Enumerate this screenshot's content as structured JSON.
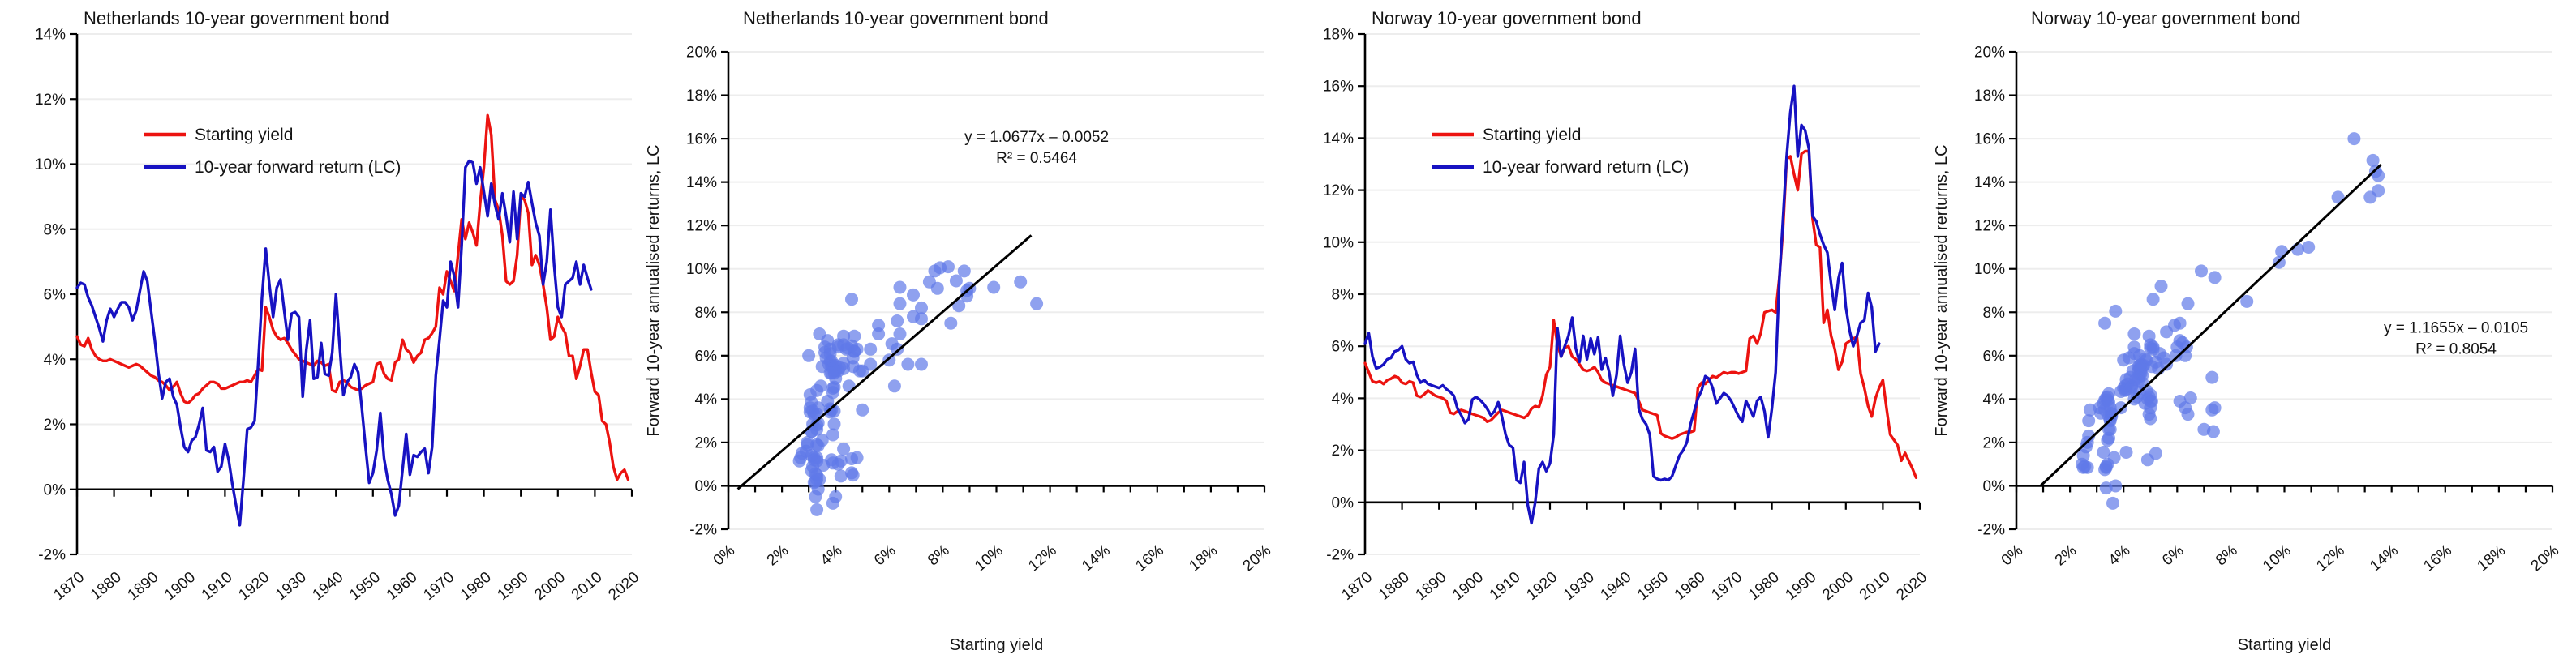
{
  "page": {
    "background": "#ffffff",
    "palette": {
      "red": "#ec1310",
      "blue": "#1712c2",
      "dot": "#6079e8",
      "dot_opacity": 0.7,
      "trend": "#000000",
      "grid": "#ededed",
      "axis": "#000000",
      "text": "#141414"
    }
  },
  "chart_data": [
    {
      "name": "netherlands-timeseries",
      "type": "line",
      "title": "Netherlands 10-year government bond",
      "x_start": 1870,
      "x_end": 2020,
      "x_tick_step": 10,
      "x_ticklabels": [
        "1870",
        "1880",
        "1890",
        "1900",
        "1910",
        "1920",
        "1930",
        "1940",
        "1950",
        "1960",
        "1970",
        "1980",
        "1990",
        "2000",
        "2010",
        "2020"
      ],
      "ylim": [
        -2,
        14
      ],
      "y_tick_step": 2,
      "y_ticklabels": [
        "-2%",
        "0%",
        "2%",
        "4%",
        "6%",
        "8%",
        "10%",
        "12%",
        "14%"
      ],
      "grid": true,
      "legend_position": "upper-left",
      "series": [
        {
          "name": "Starting yield",
          "color_key": "red",
          "start_year": 1870,
          "values": [
            4.7,
            4.45,
            4.4,
            4.65,
            4.3,
            4.1,
            4.0,
            3.95,
            3.95,
            4.0,
            3.95,
            3.9,
            3.85,
            3.8,
            3.75,
            3.8,
            3.85,
            3.8,
            3.7,
            3.6,
            3.5,
            3.45,
            3.35,
            3.3,
            3.2,
            3.05,
            3.15,
            3.3,
            2.95,
            2.7,
            2.65,
            2.75,
            2.9,
            2.95,
            3.1,
            3.2,
            3.3,
            3.3,
            3.25,
            3.1,
            3.1,
            3.15,
            3.2,
            3.25,
            3.3,
            3.3,
            3.35,
            3.3,
            3.5,
            3.7,
            3.65,
            5.6,
            5.3,
            4.9,
            4.7,
            4.6,
            4.65,
            4.5,
            4.3,
            4.15,
            4.0,
            3.95,
            3.9,
            3.85,
            3.8,
            3.95,
            3.9,
            3.8,
            3.85,
            3.05,
            3.0,
            3.3,
            3.35,
            3.3,
            3.15,
            3.1,
            3.05,
            3.1,
            3.2,
            3.25,
            3.3,
            3.85,
            3.9,
            3.55,
            3.4,
            3.35,
            3.9,
            4.0,
            4.6,
            4.3,
            4.2,
            3.9,
            4.1,
            4.2,
            4.6,
            4.65,
            4.8,
            5.0,
            6.2,
            6.0,
            6.7,
            6.4,
            6.1,
            7.2,
            8.3,
            7.7,
            8.2,
            7.9,
            7.5,
            8.8,
            9.9,
            11.5,
            10.9,
            8.9,
            8.6,
            7.8,
            6.4,
            6.3,
            6.4,
            7.2,
            9.0,
            8.9,
            8.5,
            6.9,
            7.2,
            6.9,
            6.3,
            5.6,
            4.6,
            4.7,
            5.3,
            5.0,
            4.8,
            4.1,
            4.1,
            3.4,
            3.8,
            4.3,
            4.3,
            3.6,
            3.0,
            2.9,
            2.1,
            2.0,
            1.45,
            0.7,
            0.3,
            0.5,
            0.6,
            0.3
          ]
        },
        {
          "name": "10-year forward return (LC)",
          "color_key": "blue",
          "start_year": 1870,
          "values": [
            6.2,
            6.35,
            6.3,
            5.9,
            5.65,
            5.3,
            4.95,
            4.55,
            5.2,
            5.55,
            5.3,
            5.55,
            5.75,
            5.75,
            5.6,
            5.2,
            5.5,
            6.1,
            6.7,
            6.4,
            5.5,
            4.6,
            3.6,
            2.8,
            3.3,
            3.4,
            2.85,
            2.6,
            1.9,
            1.3,
            1.15,
            1.5,
            1.6,
            2.0,
            2.5,
            1.2,
            1.15,
            1.3,
            0.55,
            0.7,
            1.4,
            0.9,
            0.15,
            -0.5,
            -1.1,
            0.3,
            1.85,
            1.9,
            2.1,
            3.9,
            5.9,
            7.4,
            6.3,
            5.3,
            6.2,
            6.45,
            5.5,
            4.6,
            5.4,
            5.45,
            5.3,
            2.85,
            4.3,
            5.2,
            3.4,
            3.45,
            4.5,
            3.55,
            3.5,
            4.2,
            6.0,
            4.4,
            2.9,
            3.3,
            3.45,
            3.85,
            3.6,
            2.5,
            1.3,
            0.2,
            0.5,
            1.2,
            2.35,
            0.95,
            0.3,
            -0.15,
            -0.8,
            -0.5,
            0.6,
            1.7,
            0.45,
            1.05,
            1.0,
            1.15,
            1.25,
            0.5,
            1.3,
            3.5,
            4.6,
            5.8,
            5.6,
            7.0,
            6.55,
            5.6,
            7.5,
            9.9,
            10.1,
            10.05,
            9.4,
            9.9,
            9.15,
            8.4,
            9.4,
            8.75,
            8.3,
            9.1,
            8.4,
            7.6,
            9.15,
            7.7,
            9.1,
            9.0,
            9.45,
            8.8,
            8.2,
            7.8,
            6.3,
            7.0,
            8.6,
            6.9,
            5.6,
            5.3,
            6.3,
            6.4,
            6.5,
            7.0,
            6.3,
            6.9,
            6.5,
            6.15
          ]
        }
      ]
    },
    {
      "name": "netherlands-scatter",
      "type": "scatter",
      "title": "Netherlands 10-year government bond",
      "xlabel": "Starting yield",
      "ylabel": "Forward 10-year annualised rerturns, LC",
      "xlim": [
        0,
        20
      ],
      "ylim": [
        -2,
        20
      ],
      "x_tick_step": 2,
      "x_minor_step": 1,
      "y_tick_step": 2,
      "x_ticklabels": [
        "0%",
        "2%",
        "4%",
        "6%",
        "8%",
        "10%",
        "12%",
        "14%",
        "16%",
        "18%",
        "20%"
      ],
      "y_ticklabels": [
        "-2%",
        "0%",
        "2%",
        "4%",
        "6%",
        "8%",
        "10%",
        "12%",
        "14%",
        "16%",
        "18%",
        "20%"
      ],
      "points_from": "netherlands-timeseries",
      "trend": {
        "slope": 1.0677,
        "intercept_pct": -0.52,
        "x_min": 0.35,
        "x_max": 11.3
      },
      "equation_line1": "y = 1.0677x – 0.0052",
      "equation_line2": "R² = 0.5464",
      "equation_pos": {
        "x": 11.5,
        "y": 15.85
      }
    },
    {
      "name": "norway-timeseries",
      "type": "line",
      "title": "Norway 10-year government bond",
      "x_start": 1870,
      "x_end": 2020,
      "x_tick_step": 10,
      "x_ticklabels": [
        "1870",
        "1880",
        "1890",
        "1900",
        "1910",
        "1920",
        "1930",
        "1940",
        "1950",
        "1960",
        "1970",
        "1980",
        "1990",
        "2000",
        "2010",
        "2020"
      ],
      "ylim": [
        -2,
        18
      ],
      "y_tick_step": 2,
      "y_ticklabels": [
        "-2%",
        "0%",
        "2%",
        "4%",
        "6%",
        "8%",
        "10%",
        "12%",
        "14%",
        "16%",
        "18%"
      ],
      "grid": true,
      "legend_position": "upper-left",
      "series": [
        {
          "name": "Starting yield",
          "color_key": "red",
          "start_year": 1870,
          "values": [
            5.35,
            5.0,
            4.65,
            4.6,
            4.65,
            4.55,
            4.7,
            4.75,
            4.85,
            4.8,
            4.6,
            4.55,
            4.65,
            4.6,
            4.1,
            4.05,
            4.15,
            4.3,
            4.2,
            4.1,
            4.05,
            4.0,
            3.9,
            3.45,
            3.4,
            3.5,
            3.55,
            3.5,
            3.45,
            3.4,
            3.35,
            3.3,
            3.25,
            3.1,
            3.15,
            3.3,
            3.45,
            3.55,
            3.5,
            3.45,
            3.4,
            3.35,
            3.3,
            3.25,
            3.35,
            3.6,
            3.7,
            3.65,
            4.1,
            4.9,
            5.2,
            7.0,
            6.1,
            5.6,
            5.95,
            6.0,
            5.6,
            5.5,
            5.3,
            5.1,
            5.05,
            5.1,
            5.2,
            5.0,
            4.7,
            4.6,
            4.55,
            4.5,
            4.45,
            4.4,
            4.35,
            4.3,
            4.25,
            4.2,
            3.9,
            3.55,
            3.5,
            3.45,
            3.4,
            3.35,
            2.65,
            2.55,
            2.5,
            2.45,
            2.5,
            2.6,
            2.65,
            2.7,
            2.7,
            2.75,
            4.4,
            4.6,
            4.55,
            4.7,
            4.85,
            4.8,
            4.9,
            5.0,
            4.95,
            5.0,
            5.0,
            4.95,
            5.0,
            5.05,
            6.3,
            6.4,
            6.1,
            6.5,
            7.3,
            7.35,
            7.4,
            7.3,
            8.6,
            10.5,
            13.2,
            13.3,
            12.6,
            12.0,
            13.4,
            13.5,
            13.5,
            10.9,
            9.9,
            9.8,
            6.9,
            7.4,
            6.4,
            5.9,
            5.1,
            5.4,
            6.1,
            6.2,
            6.3,
            6.35,
            4.95,
            4.4,
            3.7,
            3.3,
            4.0,
            4.4,
            4.7,
            3.6,
            2.6,
            2.4,
            2.2,
            1.6,
            1.9,
            1.6,
            1.3,
            0.95
          ]
        },
        {
          "name": "10-year forward return (LC)",
          "color_key": "blue",
          "start_year": 1870,
          "values": [
            6.1,
            6.5,
            5.6,
            5.15,
            5.2,
            5.3,
            5.5,
            5.55,
            5.8,
            5.85,
            6.0,
            5.5,
            5.35,
            5.4,
            4.9,
            4.6,
            4.7,
            4.55,
            4.5,
            4.45,
            4.4,
            4.5,
            4.35,
            4.25,
            4.1,
            3.6,
            3.35,
            3.05,
            3.2,
            3.95,
            4.05,
            3.95,
            3.8,
            3.6,
            3.35,
            3.5,
            3.85,
            3.3,
            2.6,
            2.2,
            2.1,
            0.85,
            0.75,
            1.55,
            -0.1,
            -0.8,
            0.0,
            1.3,
            1.55,
            1.2,
            1.5,
            2.6,
            6.7,
            5.6,
            6.0,
            6.4,
            7.1,
            5.9,
            5.4,
            6.4,
            5.5,
            6.3,
            5.7,
            6.35,
            5.1,
            5.55,
            5.0,
            4.1,
            4.9,
            6.4,
            5.3,
            4.6,
            5.0,
            5.9,
            3.6,
            3.2,
            3.0,
            2.6,
            1.0,
            0.9,
            0.85,
            0.9,
            0.85,
            1.0,
            1.4,
            1.8,
            2.0,
            2.3,
            3.0,
            3.5,
            4.0,
            4.3,
            4.85,
            4.75,
            4.4,
            3.8,
            4.0,
            4.2,
            4.1,
            3.9,
            3.6,
            3.3,
            3.1,
            3.9,
            3.6,
            3.3,
            3.9,
            4.05,
            3.5,
            2.5,
            3.6,
            5.0,
            8.5,
            10.9,
            13.3,
            15.0,
            16.0,
            13.3,
            14.5,
            14.3,
            13.6,
            11.0,
            10.8,
            10.3,
            9.9,
            9.6,
            8.4,
            7.4,
            8.6,
            9.2,
            7.5,
            6.6,
            6.0,
            6.4,
            6.9,
            7.0,
            8.05,
            7.5,
            5.8,
            6.1
          ]
        }
      ]
    },
    {
      "name": "norway-scatter",
      "type": "scatter",
      "title": "Norway 10-year government bond",
      "xlabel": "Starting yield",
      "ylabel": "Forward 10-year annualised rerturns, LC",
      "xlim": [
        0,
        20
      ],
      "ylim": [
        -2,
        20
      ],
      "x_tick_step": 2,
      "x_minor_step": 1,
      "y_tick_step": 2,
      "x_ticklabels": [
        "0%",
        "2%",
        "4%",
        "6%",
        "8%",
        "10%",
        "12%",
        "14%",
        "16%",
        "18%",
        "20%"
      ],
      "y_ticklabels": [
        "-2%",
        "0%",
        "2%",
        "4%",
        "6%",
        "8%",
        "10%",
        "12%",
        "14%",
        "16%",
        "18%",
        "20%"
      ],
      "points_from": "norway-timeseries",
      "trend": {
        "slope": 1.1655,
        "intercept_pct": -1.05,
        "x_min": 0.9,
        "x_max": 13.6
      },
      "equation_line1": "y = 1.1655x – 0.0105",
      "equation_line2": "R² = 0.8054",
      "equation_pos": {
        "x": 16.4,
        "y": 7.05
      }
    }
  ]
}
